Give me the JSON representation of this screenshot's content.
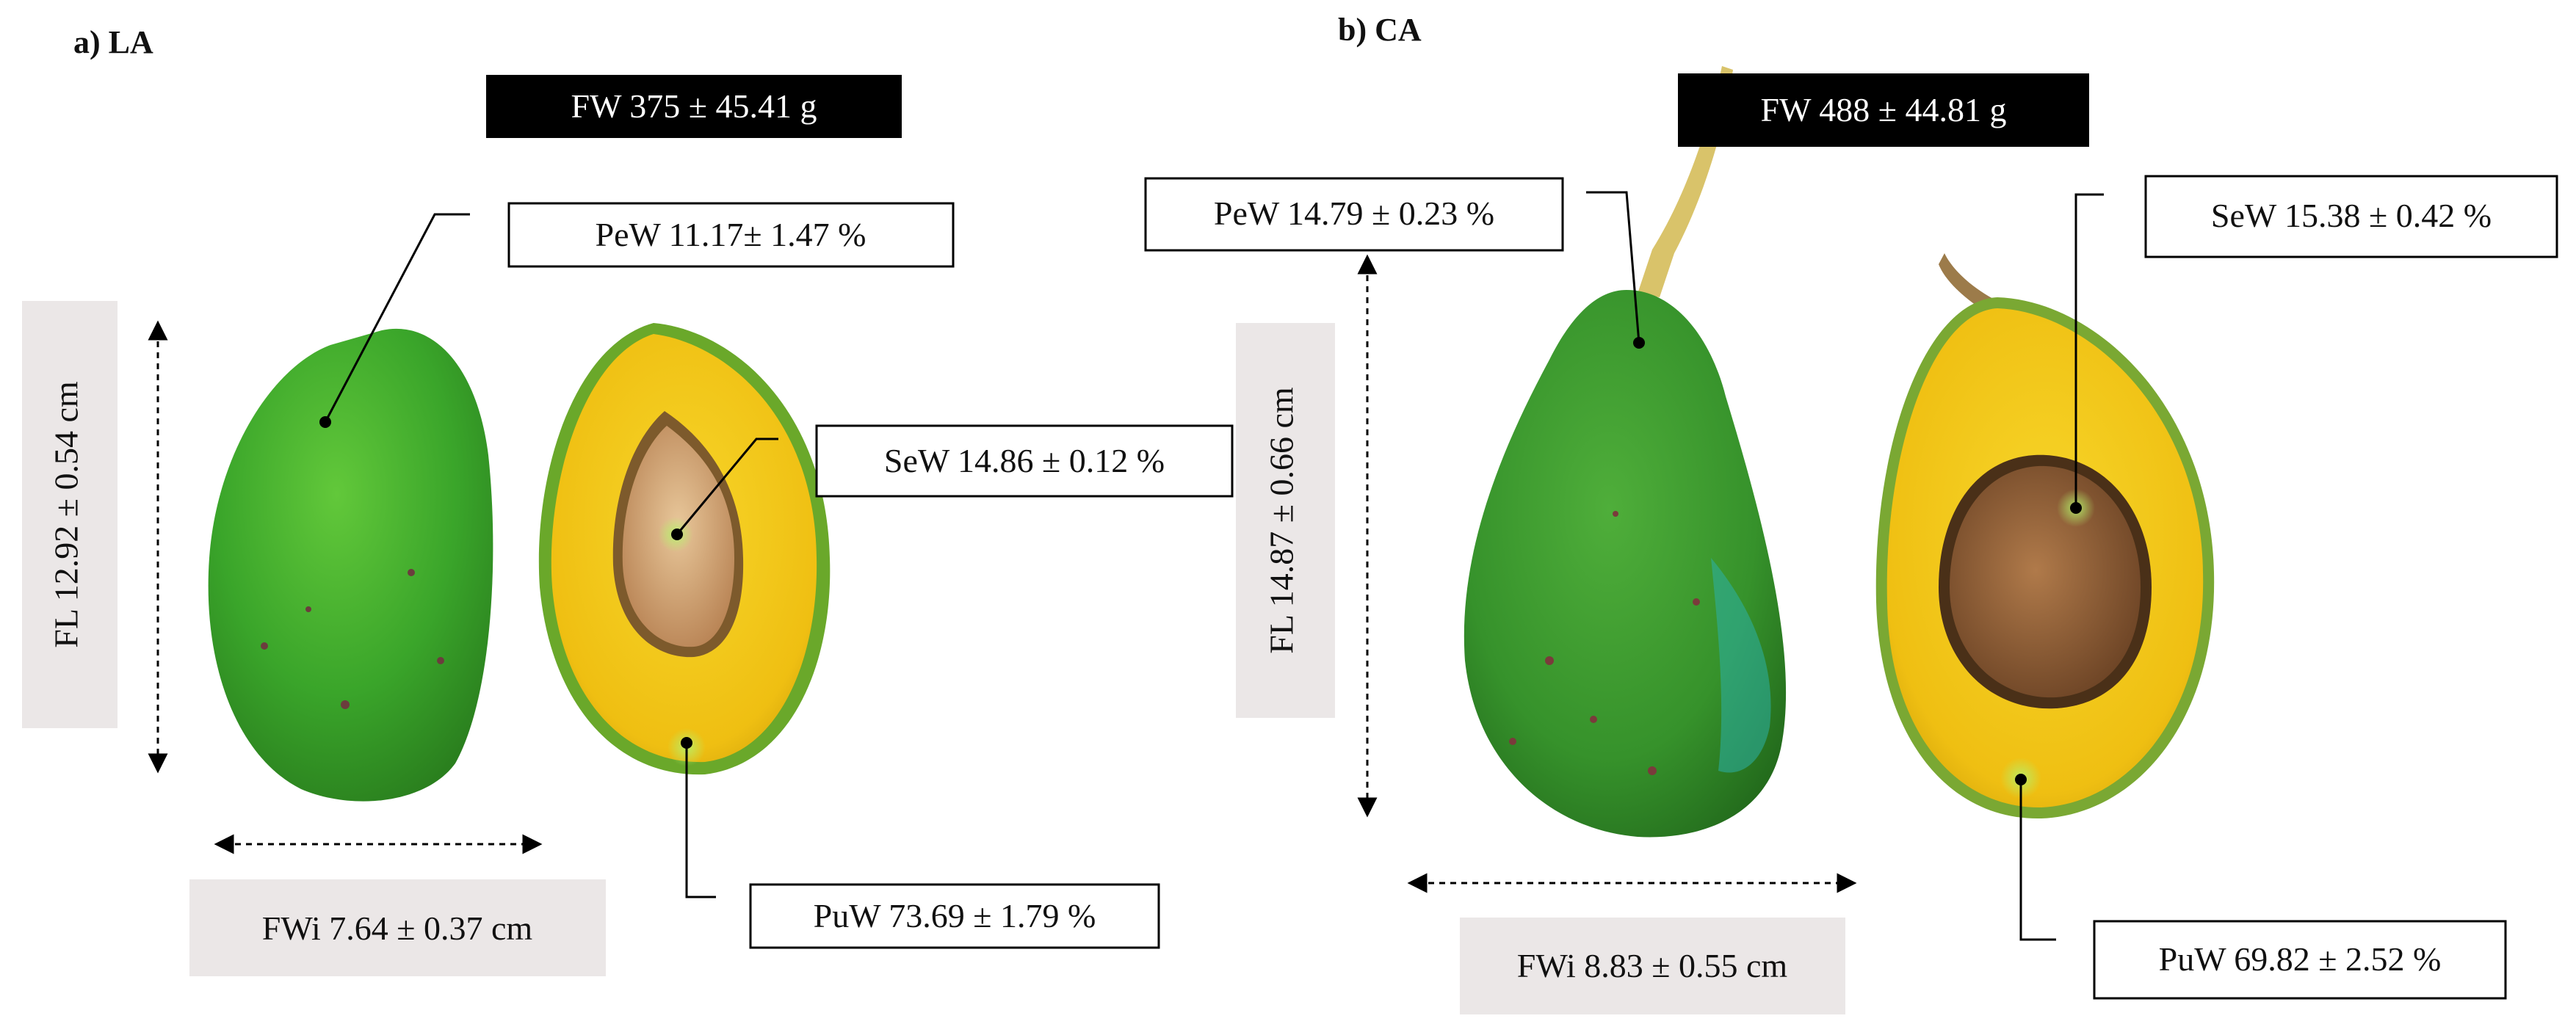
{
  "panels": [
    {
      "title": "a) LA",
      "fw": "FW 375 ± 45.41  g",
      "pew": "PeW 11.17± 1.47 %",
      "sew": "SeW 14.86 ± 0.12 %",
      "puw": "PuW 73.69 ± 1.79  %",
      "fl": "FL 12.92 ± 0.54  cm",
      "fwi": "FWi 7.64 ± 0.37 cm"
    },
    {
      "title": "b) CA",
      "fw": "FW 488 ± 44.81  g",
      "pew": "PeW 14.79 ± 0.23  %",
      "sew": "SeW 15.38 ± 0.42  %",
      "puw": "PuW 69.82 ±  2.52 %",
      "fl": "FL 14.87 ± 0.66  cm",
      "fwi": "FWi 8.83 ± 0.55  cm"
    }
  ],
  "colors": {
    "peel_green": "#3fae2a",
    "peel_dark": "#2e8a22",
    "pulp_yellow": "#f2c416",
    "seed_brown": "#b07a4a",
    "label_dark_bg": "#000000",
    "label_gray_bg": "#ebe7e7"
  }
}
